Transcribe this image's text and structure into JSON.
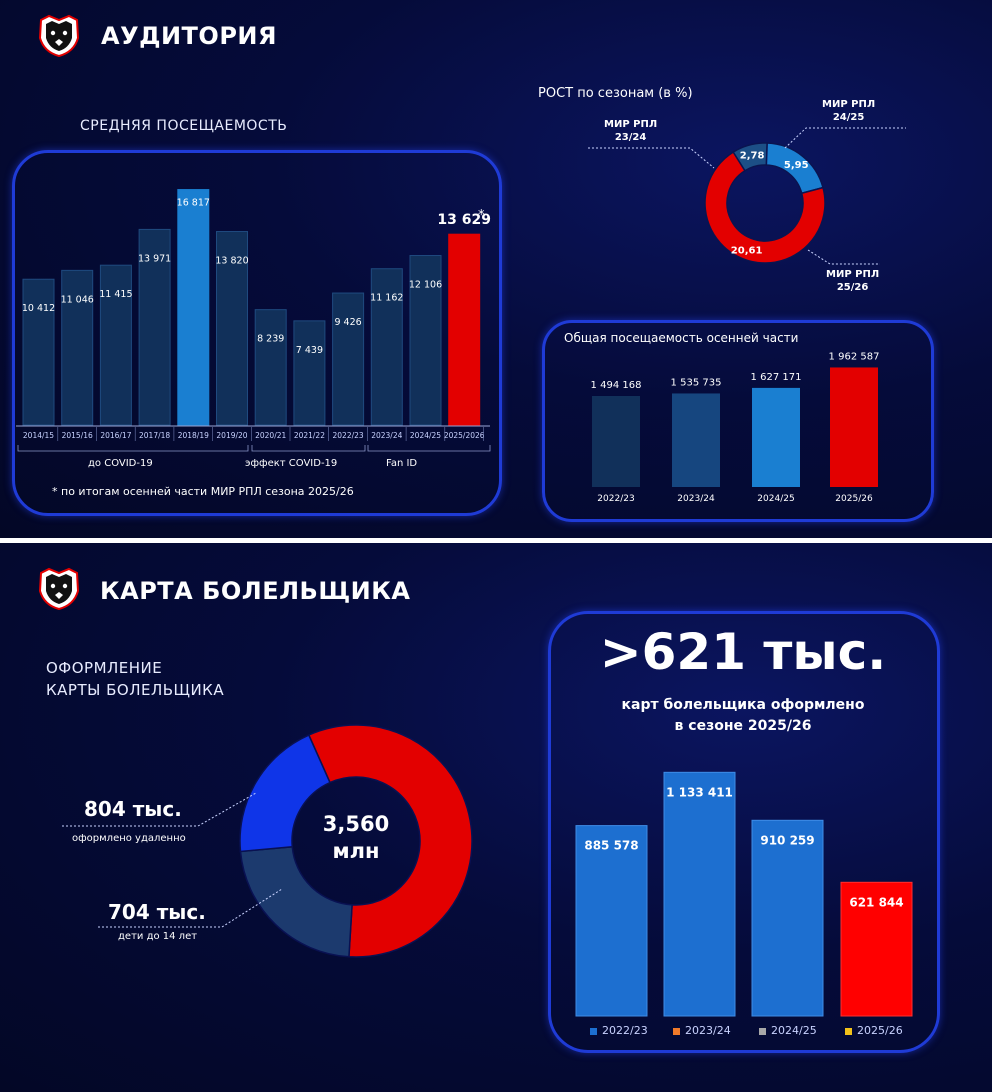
{
  "top": {
    "title": "АУДИТОРИЯ",
    "attendance_title": "СРЕДНЯЯ ПОСЕЩАЕМОСТЬ",
    "growth_title": "РОСТ по сезонам (в %)",
    "autumn_title": "Общая посещаемость  осенней части",
    "footnote": "* по итогам осенней части МИР РПЛ сезона 2025/26",
    "group_labels": [
      "до COVID-19",
      "эффект COVID-19",
      "Fan ID"
    ],
    "asterisk": "*",
    "donut_labels": {
      "l2324": [
        "МИР РПЛ",
        "23/24"
      ],
      "l2425": [
        "МИР РПЛ",
        "24/25"
      ],
      "l2526": [
        "МИР РПЛ",
        "25/26"
      ]
    }
  },
  "bottom": {
    "title": "КАРТА БОЛЕЛЬЩИКА",
    "subtitle": [
      "ОФОРМЛЕНИЕ",
      "КАРТЫ БОЛЕЛЬЩИКА"
    ],
    "donut_center": [
      "3,560",
      "млн"
    ],
    "remote_value": "804 тыс.",
    "remote_label": "оформлено удаленно",
    "kids_value": "704 тыс.",
    "kids_label": "дети до 14 лет",
    "big_number": ">621 тыс.",
    "big_caption": [
      "карт болельщика оформлено",
      "в сезоне 2025/26"
    ]
  },
  "colors": {
    "dark_bar": "#11305a",
    "light_bar": "#1a7fd1",
    "red": "#e30000",
    "donut_navy": "#1c3a6e",
    "donut_blue": "#0f35e8",
    "card_bar": "#1d6fd0"
  },
  "chart_data": [
    {
      "type": "bar",
      "title": "СРЕДНЯЯ ПОСЕЩАЕМОСТЬ",
      "categories": [
        "2014/15",
        "2015/16",
        "2016/17",
        "2017/18",
        "2018/19",
        "2019/20",
        "2020/21",
        "2021/22",
        "2022/23",
        "2023/24",
        "2024/25",
        "2025/2026"
      ],
      "values": [
        10412,
        11046,
        11415,
        13971,
        16817,
        13820,
        8239,
        7439,
        9426,
        11162,
        12106,
        13629
      ],
      "value_labels": [
        "10 412",
        "11 046",
        "11 415",
        "13 971",
        "16 817",
        "13 820",
        "8 239",
        "7 439",
        "9 426",
        "11 162",
        "12 106",
        "13 629"
      ],
      "highlight": {
        "2018/19": "#1a7fd1",
        "2025/2026": "#e30000"
      }
    },
    {
      "type": "pie",
      "title": "РОСТ по сезонам (в %)",
      "labels": [
        "МИР РПЛ 23/24",
        "МИР РПЛ 24/25",
        "МИР РПЛ 25/26"
      ],
      "values": [
        2.78,
        5.95,
        20.61
      ],
      "value_labels": [
        "2,78",
        "5,95",
        "20,61"
      ],
      "colors": [
        "#1c4f86",
        "#1a7fd1",
        "#e30000"
      ]
    },
    {
      "type": "bar",
      "title": "Общая посещаемость  осенней части",
      "categories": [
        "2022/23",
        "2023/24",
        "2024/25",
        "2025/26"
      ],
      "values": [
        1494168,
        1535735,
        1627171,
        1962587
      ],
      "value_labels": [
        "1 494 168",
        "1 535 735",
        "1 627 171",
        "1 962 587"
      ],
      "colors": [
        "#11305a",
        "#16467f",
        "#1a7fd1",
        "#e30000"
      ]
    },
    {
      "type": "pie",
      "title": "",
      "labels": [
        "",
        "804 тыс.",
        "704 тыс."
      ],
      "values": [
        2052,
        804,
        704
      ],
      "center_label": "3,560 млн",
      "colors": [
        "#e30000",
        "#1c3a6e",
        "#0f35e8"
      ]
    },
    {
      "type": "bar",
      "title": "",
      "categories": [
        "2022/23",
        "2023/24",
        "2024/25",
        "2025/26"
      ],
      "values": [
        885578,
        1133411,
        910259,
        621844
      ],
      "value_labels": [
        "885 578",
        "1 133 411",
        "910 259",
        "621 844"
      ],
      "colors": [
        "#1d6fd0",
        "#1d6fd0",
        "#1d6fd0",
        "#ff0000"
      ],
      "legend": [
        "2022/23",
        "2023/24",
        "2024/25",
        "2025/26"
      ],
      "legend_colors": [
        "#1d6fd0",
        "#f07a2a",
        "#a8a8a8",
        "#f2c21a"
      ]
    }
  ]
}
